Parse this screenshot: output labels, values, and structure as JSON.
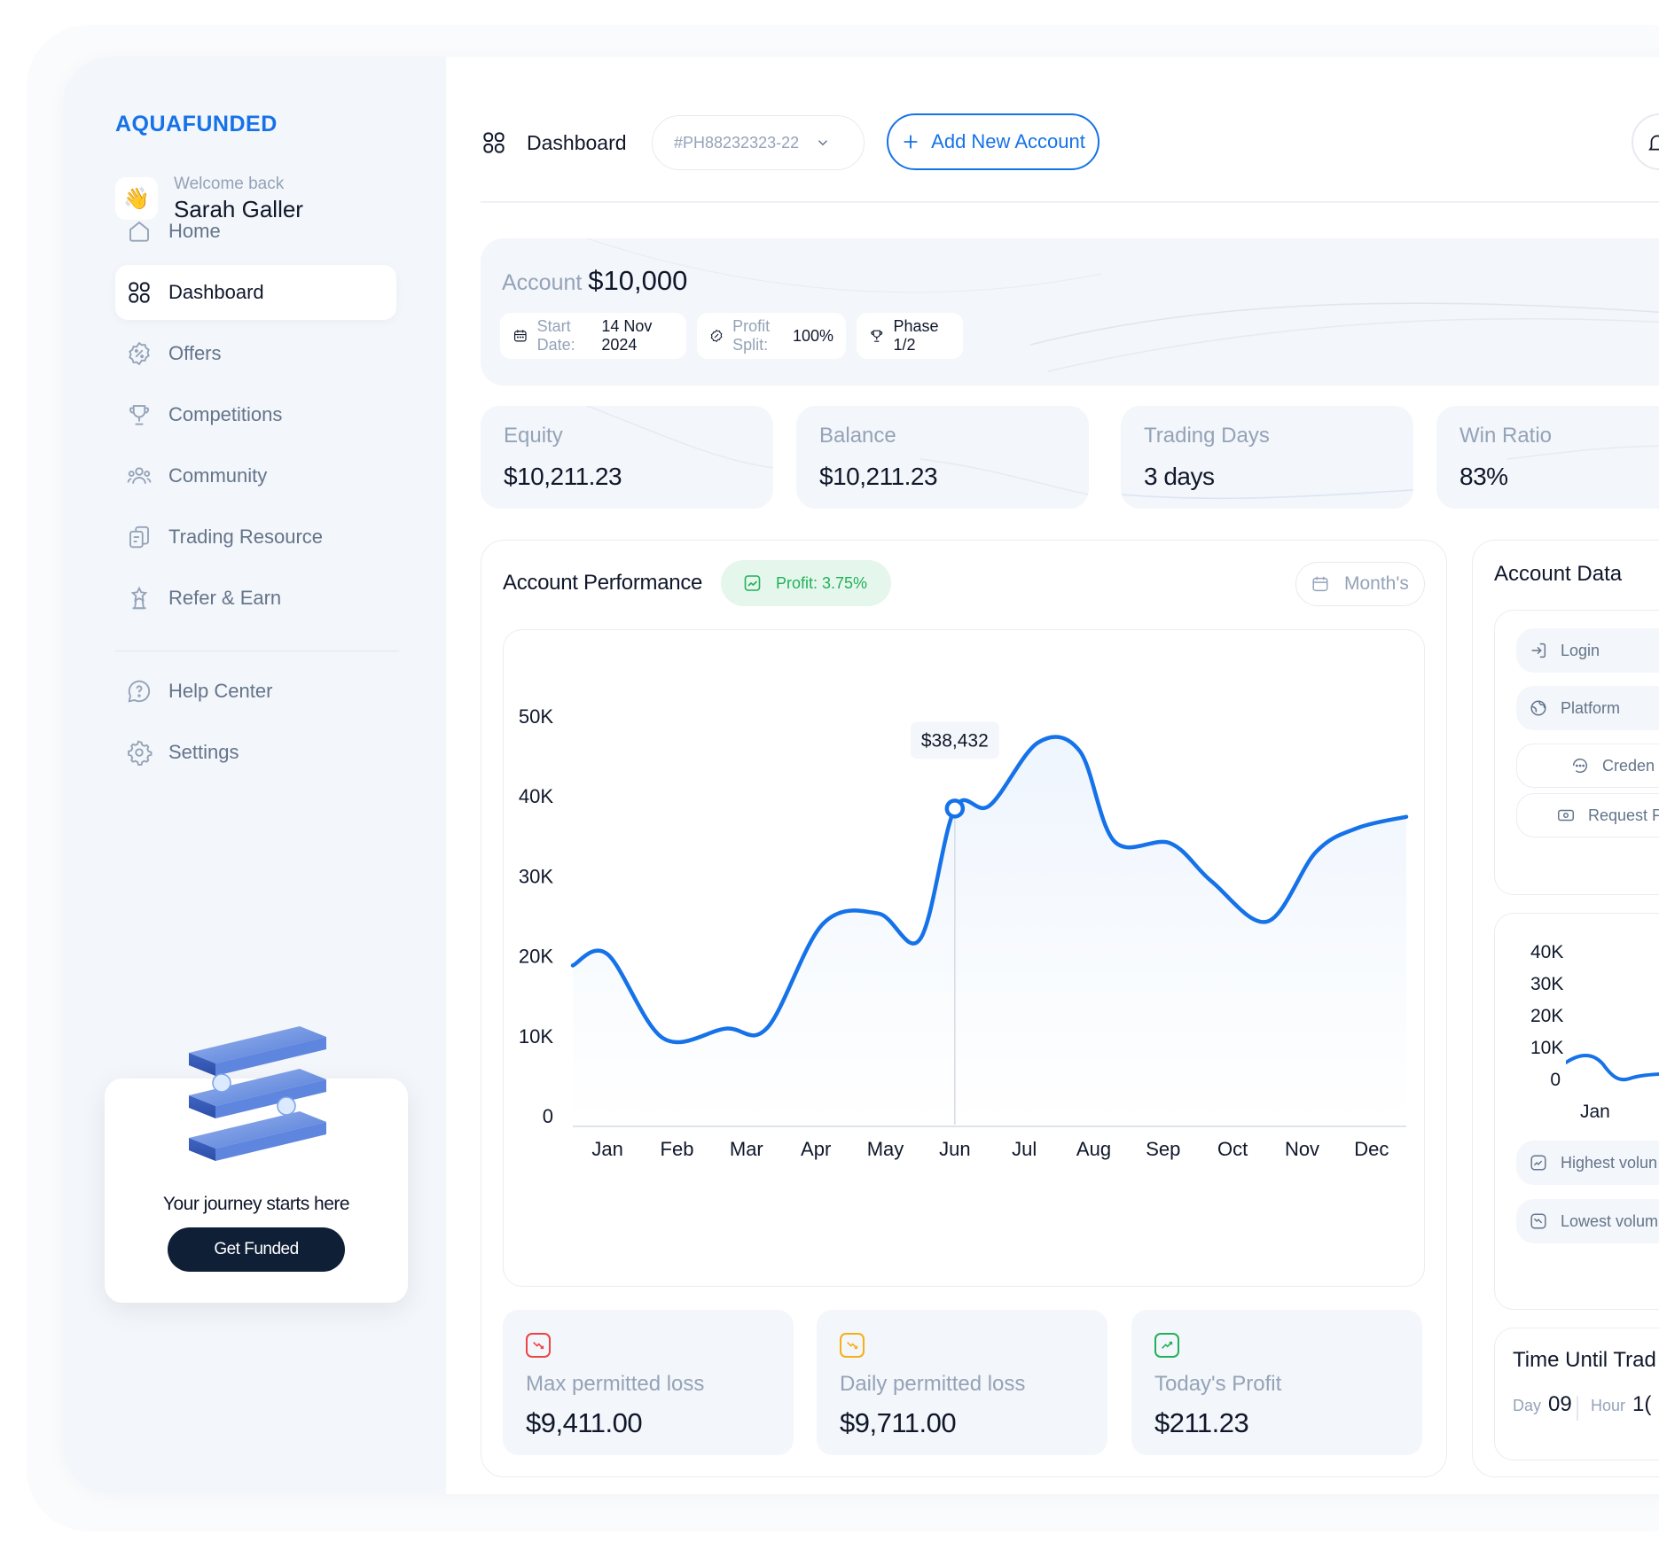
{
  "brand": {
    "logo": "AQUAFUNDED",
    "accent": "#1572e8"
  },
  "user": {
    "greeting": "Welcome back",
    "name": "Sarah Galler"
  },
  "sidebar": {
    "items": [
      {
        "label": "Home",
        "icon": "home-icon"
      },
      {
        "label": "Dashboard",
        "icon": "grid-icon",
        "active": true
      },
      {
        "label": "Offers",
        "icon": "discount-badge-icon"
      },
      {
        "label": "Competitions",
        "icon": "trophy-icon"
      },
      {
        "label": "Community",
        "icon": "users-icon"
      },
      {
        "label": "Trading Resource",
        "icon": "documents-icon"
      },
      {
        "label": "Refer & Earn",
        "icon": "award-icon"
      }
    ],
    "bottom_items": [
      {
        "label": "Help Center",
        "icon": "help-circle-icon"
      },
      {
        "label": "Settings",
        "icon": "gear-icon"
      }
    ],
    "promo": {
      "text": "Your journey starts here",
      "button": "Get Funded"
    }
  },
  "header": {
    "title": "Dashboard",
    "account_select": "#PH88232323-22",
    "add_button": "Add New Account"
  },
  "account": {
    "label": "Account",
    "amount": "$10,000",
    "start_label": "Start Date:",
    "start_value": "14 Nov 2024",
    "split_label": "Profit Split:",
    "split_value": "100%",
    "phase": "Phase 1/2"
  },
  "stats": [
    {
      "title": "Equity",
      "value": "$10,211.23"
    },
    {
      "title": "Balance",
      "value": "$10,211.23"
    },
    {
      "title": "Trading Days",
      "value": "3 days"
    },
    {
      "title": "Win Ratio",
      "value": "83%"
    }
  ],
  "performance": {
    "title": "Account Performance",
    "profit_badge": "Profit: 3.75%",
    "period": "Month's",
    "tooltip": "$38,432"
  },
  "chart_data": {
    "type": "line",
    "categories": [
      "Jan",
      "Feb",
      "Mar",
      "Apr",
      "May",
      "Jun",
      "Jul",
      "Aug",
      "Sep",
      "Oct",
      "Nov",
      "Dec"
    ],
    "y_ticks": [
      "0",
      "10K",
      "20K",
      "30K",
      "40K",
      "50K"
    ],
    "ylim": [
      0,
      50000
    ],
    "x": [
      -0.5,
      0,
      0.8,
      1.7,
      2.3,
      3.1,
      3.9,
      4.5,
      5.0,
      5.5,
      6.2,
      6.8,
      7.3,
      8.1,
      8.7,
      9.5,
      10.2,
      10.8,
      11.5
    ],
    "values": [
      18800,
      20200,
      9700,
      10900,
      11000,
      24000,
      25300,
      22100,
      38432,
      38800,
      46700,
      45600,
      34300,
      34100,
      29300,
      24300,
      33000,
      36000,
      37400
    ],
    "highlight": {
      "x": 5.0,
      "value": 38432,
      "label": "$38,432"
    },
    "color": "#1572e8"
  },
  "limits": [
    {
      "title": "Max permitted loss",
      "value": "$9,411.00",
      "color": "#ef4444"
    },
    {
      "title": "Daily permitted loss",
      "value": "$9,711.00",
      "color": "#f5b014"
    },
    {
      "title": "Today's Profit",
      "value": "$211.23",
      "color": "#22b15a"
    }
  ],
  "account_data": {
    "title": "Account Data",
    "login": "Login",
    "platform": "Platform",
    "credentials": "Creden",
    "request": "Request F",
    "mini_y_ticks": [
      "40K",
      "30K",
      "20K",
      "10K",
      "0"
    ],
    "mini_x": "Jan",
    "highest": "Highest volun",
    "lowest": "Lowest volum",
    "timer_title": "Time Until Trad",
    "day_label": "Day",
    "day_value": "09",
    "hour_label": "Hour",
    "hour_value": "1("
  }
}
